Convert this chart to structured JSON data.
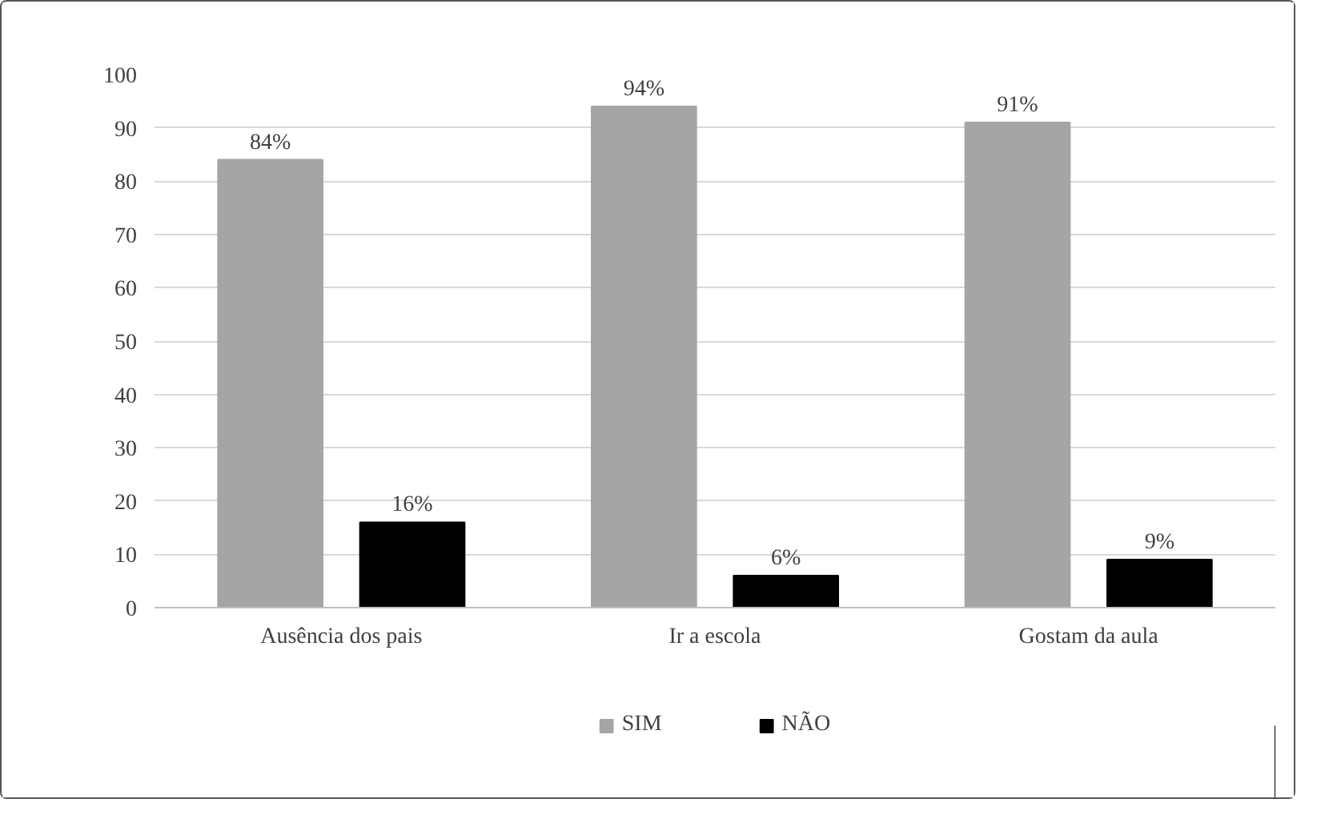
{
  "chart_data": {
    "type": "bar",
    "categories": [
      "Ausência dos pais",
      "Ir a escola",
      "Gostam da aula"
    ],
    "series": [
      {
        "name": "SIM",
        "color": "#a5a5a5",
        "values": [
          84,
          94,
          91
        ],
        "value_labels": [
          "84%",
          "94%",
          "91%"
        ]
      },
      {
        "name": "NÃO",
        "color": "#000000",
        "values": [
          16,
          6,
          9
        ],
        "value_labels": [
          "16%",
          "6%",
          "9%"
        ]
      }
    ],
    "ylim": [
      0,
      100
    ],
    "yticks": [
      0,
      10,
      20,
      30,
      40,
      50,
      60,
      70,
      80,
      90,
      100
    ],
    "grid": "y",
    "legend": "bottom"
  }
}
